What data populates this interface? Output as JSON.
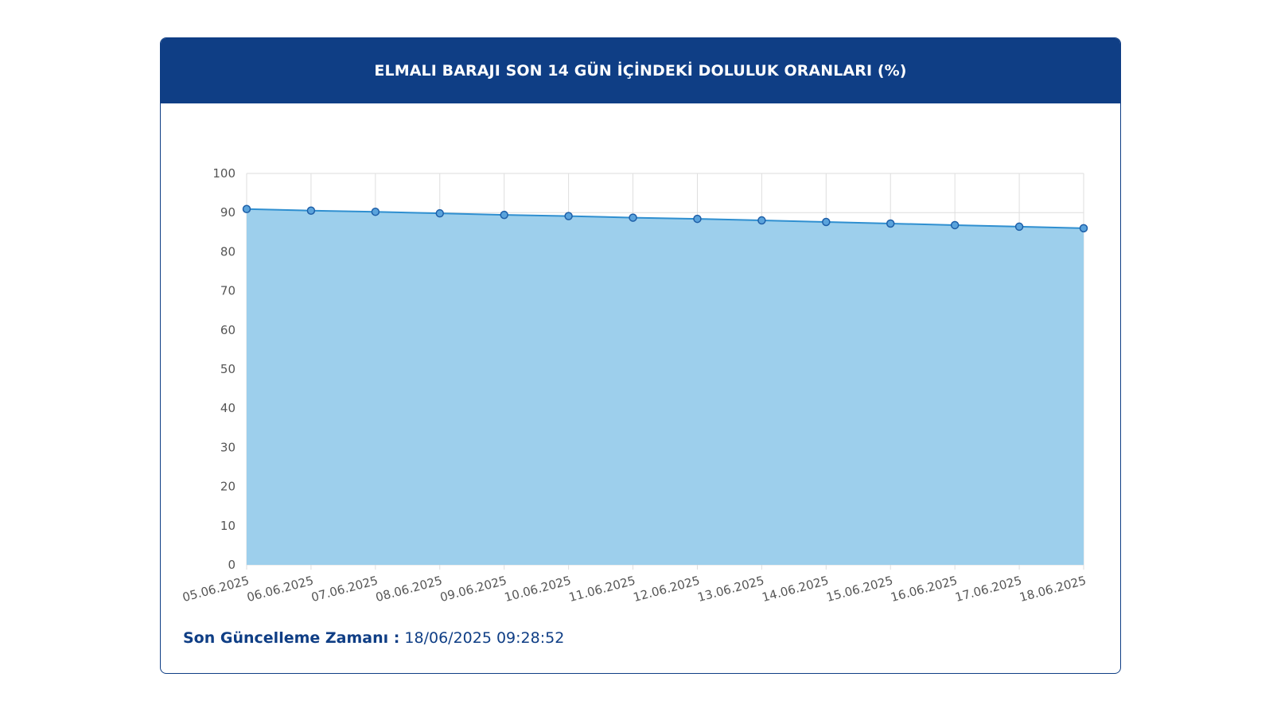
{
  "header": {
    "title": "ELMALI BARAJI SON 14 GÜN İÇİNDEKİ DOLULUK ORANLARI (%)"
  },
  "footer": {
    "label": "Son Güncelleme Zamanı :",
    "value": "18/06/2025 09:28:52"
  },
  "colors": {
    "header_bg": "#0f3e85",
    "line": "#2f8fd0",
    "fill": "#9dcfec",
    "point_fill": "#5aa3dc",
    "point_stroke": "#1e5fa8",
    "grid": "#dedede"
  },
  "chart_data": {
    "type": "area",
    "categories": [
      "05.06.2025",
      "06.06.2025",
      "07.06.2025",
      "08.06.2025",
      "09.06.2025",
      "10.06.2025",
      "11.06.2025",
      "12.06.2025",
      "13.06.2025",
      "14.06.2025",
      "15.06.2025",
      "16.06.2025",
      "17.06.2025",
      "18.06.2025"
    ],
    "values": [
      90.9,
      90.5,
      90.2,
      89.8,
      89.4,
      89.1,
      88.7,
      88.4,
      88.0,
      87.6,
      87.2,
      86.8,
      86.4,
      86.0
    ],
    "ylim": [
      0,
      100
    ],
    "yticks": [
      0,
      10,
      20,
      30,
      40,
      50,
      60,
      70,
      80,
      90,
      100
    ],
    "grid": true,
    "legend": "none"
  }
}
